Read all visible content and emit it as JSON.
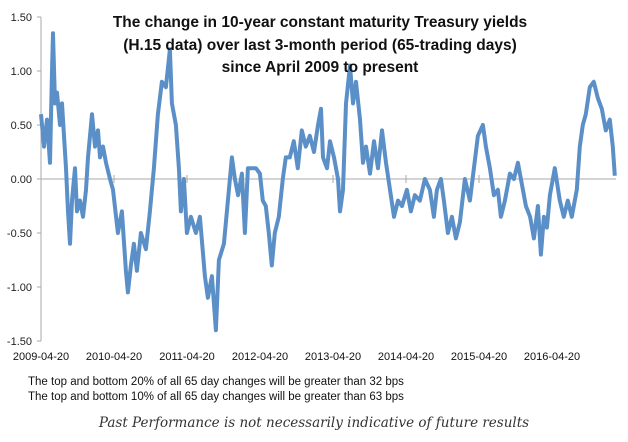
{
  "chart_data": {
    "type": "line",
    "title": [
      "The change in 10-year constant maturity Treasury yields",
      "(H.15 data) over last 3-month period (65-trading days)",
      "since April 2009 to present"
    ],
    "xlabel": "",
    "ylabel": "",
    "ylim": [
      -1.5,
      1.5
    ],
    "yticks": [
      "1.50",
      "1.00",
      "0.50",
      "0.00",
      "-0.50",
      "-1.00",
      "-1.50"
    ],
    "xticks": [
      "2009-04-20",
      "2010-04-20",
      "2011-04-20",
      "2012-04-20",
      "2013-04-20",
      "2014-04-20",
      "2015-04-20",
      "2016-04-20"
    ],
    "grid": false,
    "color": "#5b8fc7",
    "series": [
      {
        "x": [
          "2009-04-20",
          "2009-05-05",
          "2009-05-20",
          "2009-06-04",
          "2009-06-14",
          "2009-06-19",
          "2009-06-29",
          "2009-07-09",
          "2009-07-24",
          "2009-08-03",
          "2009-08-13",
          "2009-08-23",
          "2009-09-02",
          "2009-09-12",
          "2009-09-22",
          "2009-10-07",
          "2009-10-17",
          "2009-11-01",
          "2009-11-16",
          "2009-12-01",
          "2009-12-11",
          "2009-12-31",
          "2010-01-15",
          "2010-01-30",
          "2010-02-09",
          "2010-02-24",
          "2010-03-11",
          "2010-03-31",
          "2010-04-15",
          "2010-05-10",
          "2010-05-30",
          "2010-06-19",
          "2010-06-29",
          "2010-07-14",
          "2010-07-29",
          "2010-08-13",
          "2010-09-02",
          "2010-09-27",
          "2010-10-17",
          "2010-11-06",
          "2010-11-26",
          "2010-12-16",
          "2011-01-05",
          "2011-01-25",
          "2011-02-04",
          "2011-02-24",
          "2011-03-11",
          "2011-03-21",
          "2011-04-05",
          "2011-04-20",
          "2011-05-10",
          "2011-06-04",
          "2011-06-24",
          "2011-07-19",
          "2011-08-03",
          "2011-08-23",
          "2011-09-12",
          "2011-09-27",
          "2011-10-22",
          "2011-11-11",
          "2011-12-01",
          "2011-12-16",
          "2012-01-01",
          "2012-01-20",
          "2012-02-04",
          "2012-02-19",
          "2012-03-10",
          "2012-03-30",
          "2012-04-19",
          "2012-05-04",
          "2012-05-19",
          "2012-06-03",
          "2012-06-18",
          "2012-07-03",
          "2012-07-23",
          "2012-08-12",
          "2012-08-27",
          "2012-09-16",
          "2012-10-06",
          "2012-10-26",
          "2012-11-15",
          "2012-12-05",
          "2012-12-25",
          "2013-01-15",
          "2013-02-04",
          "2013-02-19",
          "2013-03-01",
          "2013-03-21",
          "2013-04-05",
          "2013-04-25",
          "2013-05-15",
          "2013-05-25",
          "2013-06-09",
          "2013-06-24",
          "2013-07-14",
          "2013-07-29",
          "2013-08-13",
          "2013-09-02",
          "2013-09-17",
          "2013-10-02",
          "2013-10-22",
          "2013-11-11",
          "2013-12-01",
          "2013-12-21",
          "2014-01-10",
          "2014-01-30",
          "2014-02-19",
          "2014-03-11",
          "2014-03-31",
          "2014-04-25",
          "2014-05-15",
          "2014-06-04",
          "2014-06-29",
          "2014-07-24",
          "2014-08-18",
          "2014-09-07",
          "2014-09-22",
          "2014-10-12",
          "2014-10-27",
          "2014-11-16",
          "2014-12-06",
          "2014-12-26",
          "2015-01-15",
          "2015-02-09",
          "2015-03-06",
          "2015-03-26",
          "2015-04-15",
          "2015-05-10",
          "2015-05-25",
          "2015-06-14",
          "2015-07-04",
          "2015-07-24",
          "2015-08-08",
          "2015-08-28",
          "2015-09-22",
          "2015-10-12",
          "2015-11-01",
          "2015-11-21",
          "2015-12-11",
          "2016-01-01",
          "2016-01-20",
          "2016-02-09",
          "2016-02-24",
          "2016-03-10",
          "2016-03-25",
          "2016-04-09",
          "2016-05-04",
          "2016-05-29",
          "2016-06-18",
          "2016-07-08",
          "2016-07-28",
          "2016-08-22",
          "2016-09-06",
          "2016-09-21",
          "2016-10-06",
          "2016-10-26",
          "2016-11-15",
          "2016-12-05",
          "2016-12-25",
          "2017-01-14",
          "2017-02-03",
          "2017-02-18",
          "2017-02-28"
        ],
        "y": [
          0.6,
          0.3,
          0.55,
          0.15,
          1.0,
          1.35,
          0.7,
          0.8,
          0.5,
          0.7,
          0.4,
          0.1,
          -0.3,
          -0.6,
          -0.2,
          0.1,
          -0.3,
          -0.2,
          -0.35,
          -0.1,
          0.2,
          0.6,
          0.3,
          0.45,
          0.2,
          0.3,
          0.15,
          0.0,
          -0.1,
          -0.5,
          -0.3,
          -0.85,
          -1.05,
          -0.8,
          -0.6,
          -0.85,
          -0.5,
          -0.65,
          -0.3,
          0.1,
          0.6,
          0.9,
          0.85,
          1.2,
          0.7,
          0.5,
          0.1,
          -0.3,
          0.0,
          -0.5,
          -0.35,
          -0.5,
          -0.35,
          -0.9,
          -1.1,
          -0.9,
          -1.4,
          -0.75,
          -0.6,
          -0.2,
          0.2,
          0.0,
          -0.15,
          0.05,
          -0.5,
          0.1,
          0.1,
          0.1,
          0.05,
          -0.2,
          -0.25,
          -0.5,
          -0.8,
          -0.5,
          -0.35,
          0.0,
          0.2,
          0.2,
          0.35,
          0.1,
          0.45,
          0.3,
          0.4,
          0.25,
          0.5,
          0.65,
          0.2,
          0.1,
          0.35,
          0.2,
          0.0,
          -0.3,
          -0.1,
          0.7,
          1.05,
          0.7,
          0.9,
          0.55,
          0.15,
          0.3,
          0.05,
          0.35,
          0.1,
          0.45,
          0.15,
          -0.1,
          -0.35,
          -0.2,
          -0.25,
          -0.1,
          -0.3,
          -0.15,
          -0.2,
          0.0,
          -0.1,
          -0.35,
          -0.1,
          0.0,
          -0.2,
          -0.5,
          -0.35,
          -0.55,
          -0.4,
          0.0,
          -0.2,
          0.1,
          0.4,
          0.5,
          0.3,
          0.1,
          -0.15,
          -0.1,
          -0.35,
          -0.2,
          0.05,
          0.0,
          0.15,
          -0.05,
          -0.25,
          -0.35,
          -0.55,
          -0.25,
          -0.7,
          -0.35,
          -0.45,
          -0.15,
          0.1,
          -0.2,
          -0.35,
          -0.2,
          -0.35,
          -0.1,
          0.3,
          0.5,
          0.6,
          0.85,
          0.9,
          0.75,
          0.65,
          0.45,
          0.55,
          0.3,
          0.03
        ]
      }
    ]
  },
  "notes": [
    "The top and bottom 20% of all 65 day changes will be greater than 32 bps",
    "The top and bottom 10% of all 65 day changes will be greater than 63 bps"
  ],
  "disclaimer": "Past Performance is not necessarily indicative of future results"
}
